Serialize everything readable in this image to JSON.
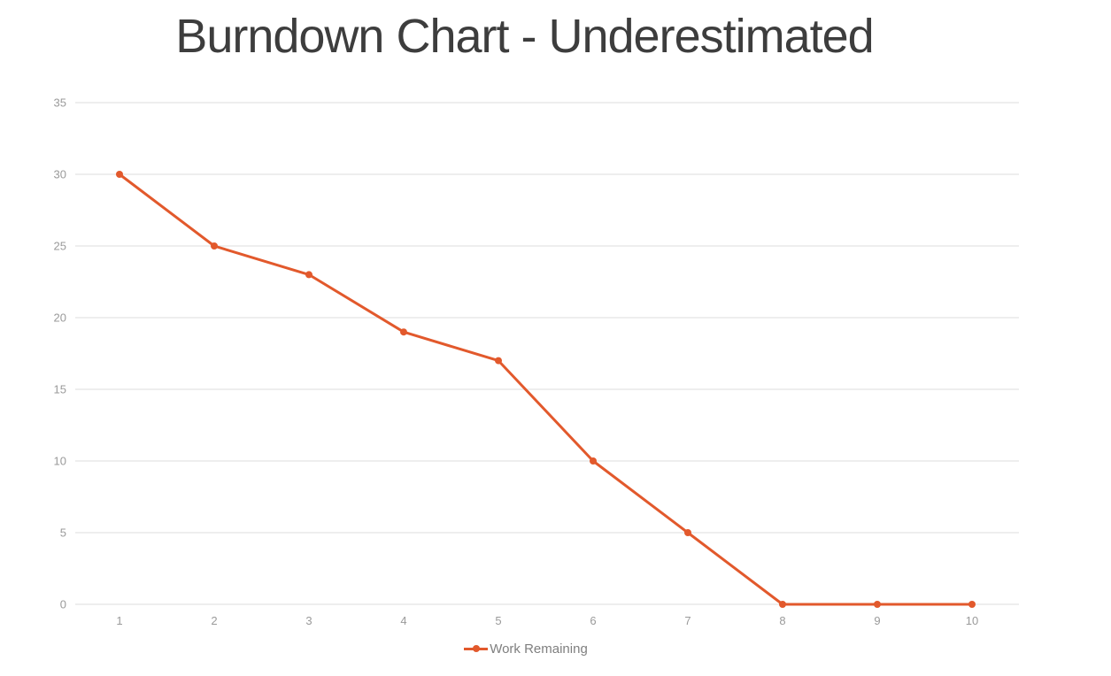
{
  "colors": {
    "background": "#ffffff",
    "accent": "#e2592c",
    "title_text": "#3d3d3d",
    "axis_text": "#9a9a9a",
    "legend_text": "#7f7f7f",
    "gridline": "#e9e9e9"
  },
  "chart_data": {
    "type": "line",
    "title": "Burndown Chart - Underestimated",
    "categories": [
      "1",
      "2",
      "3",
      "4",
      "5",
      "6",
      "7",
      "8",
      "9",
      "10"
    ],
    "series": [
      {
        "name": "Work Remaining",
        "values": [
          30,
          25,
          23,
          19,
          17,
          10,
          5,
          0,
          0,
          0
        ],
        "color": "#e2592c",
        "marker": "circle"
      }
    ],
    "xlabel": "",
    "ylabel": "",
    "ylim": [
      0,
      35
    ],
    "yticks": [
      0,
      5,
      10,
      15,
      20,
      25,
      30,
      35
    ],
    "grid": true,
    "legend_position": "bottom"
  }
}
